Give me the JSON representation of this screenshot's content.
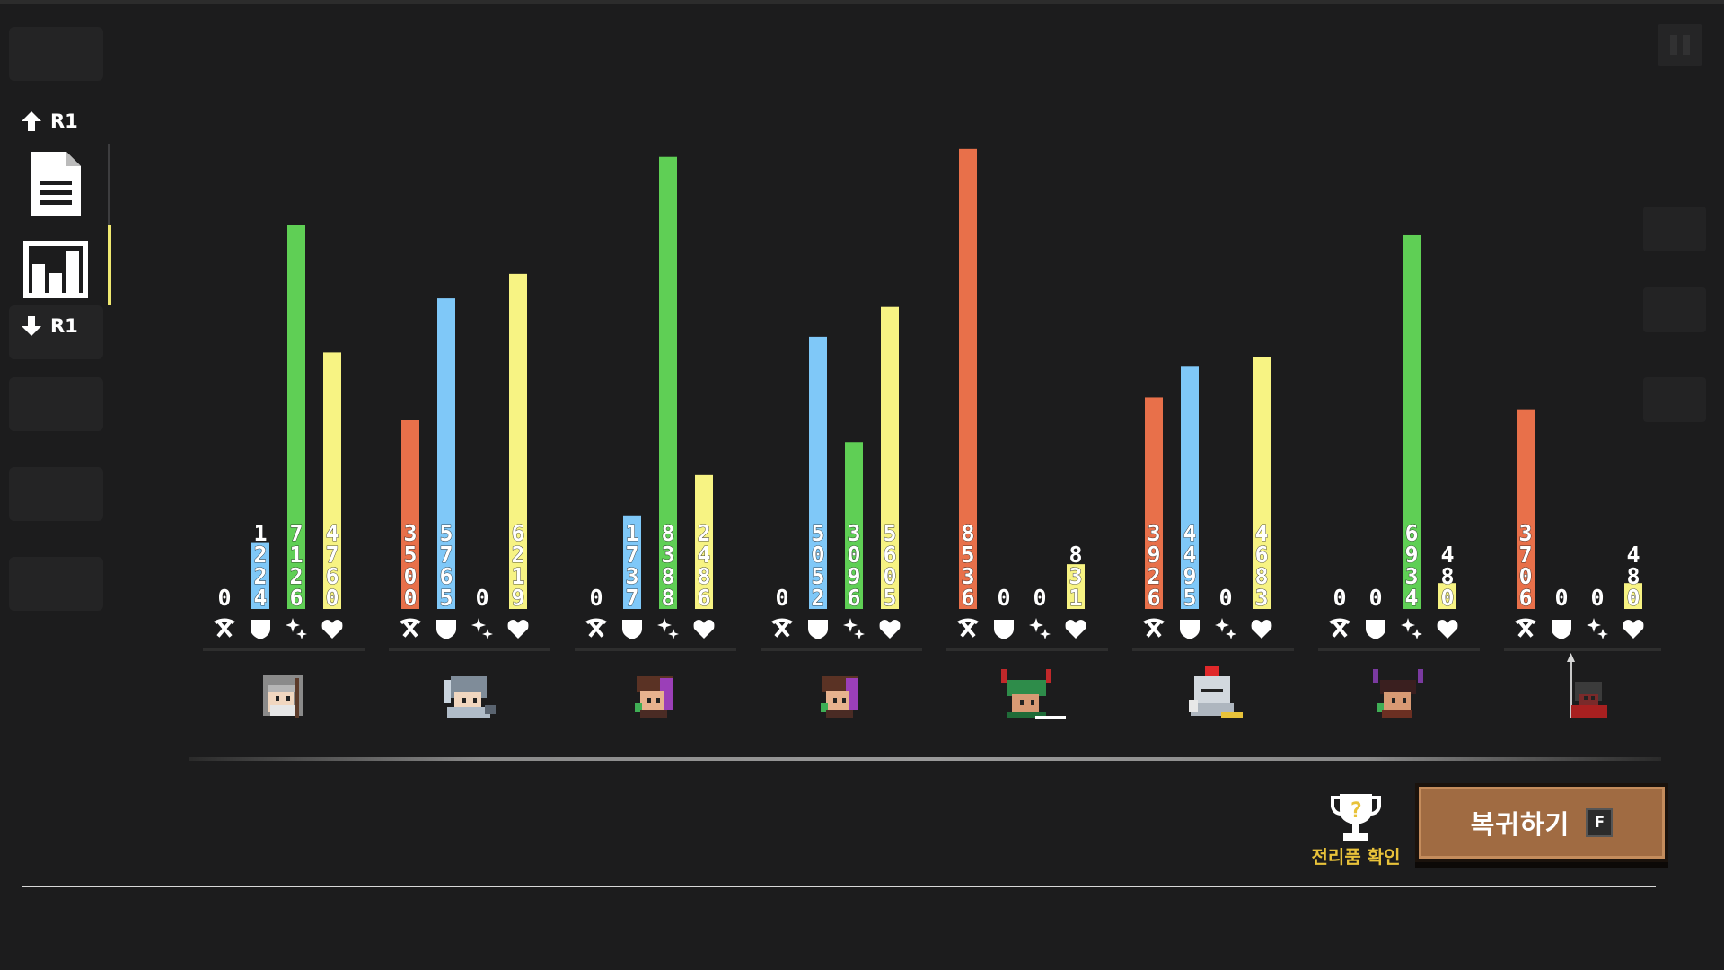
{
  "nav": {
    "prev_key": "R1",
    "next_key": "R1"
  },
  "tabs": [
    {
      "icon": "document-icon",
      "active": false
    },
    {
      "icon": "bar-chart-icon",
      "active": true
    }
  ],
  "stat_icons": [
    "pickaxe-icon",
    "shield-icon",
    "sparkle-icon",
    "heart-icon"
  ],
  "chart_data": {
    "type": "bar",
    "categories": [
      "Character 1",
      "Character 2",
      "Character 3",
      "Character 4",
      "Character 5",
      "Character 6",
      "Character 7",
      "Character 8"
    ],
    "series": [
      {
        "color": "#e8704a",
        "values": [
          0,
          3500,
          0,
          0,
          8536,
          3926,
          0,
          3706
        ]
      },
      {
        "color": "#7fc8f8",
        "values": [
          1224,
          5765,
          1737,
          5052,
          0,
          4495,
          0,
          0
        ]
      },
      {
        "color": "#5fcf55",
        "values": [
          7126,
          0,
          8388,
          3096,
          0,
          0,
          6934,
          0
        ]
      },
      {
        "color": "#f7f383",
        "values": [
          4760,
          6219,
          2486,
          5605,
          831,
          4683,
          480,
          480
        ]
      }
    ],
    "ylim": [
      0,
      8900
    ]
  },
  "characters": [
    {
      "icon": "hooded-elder-icon"
    },
    {
      "icon": "helmeted-knight-icon"
    },
    {
      "icon": "purple-hair-girl-icon"
    },
    {
      "icon": "purple-hair-girl-icon"
    },
    {
      "icon": "antlered-druid-icon"
    },
    {
      "icon": "plumed-knight-icon"
    },
    {
      "icon": "horned-demon-icon"
    },
    {
      "icon": "dark-spearman-icon"
    }
  ],
  "actions": {
    "trophy_label": "전리품 확인",
    "return_label": "복귀하기",
    "return_key": "F"
  }
}
